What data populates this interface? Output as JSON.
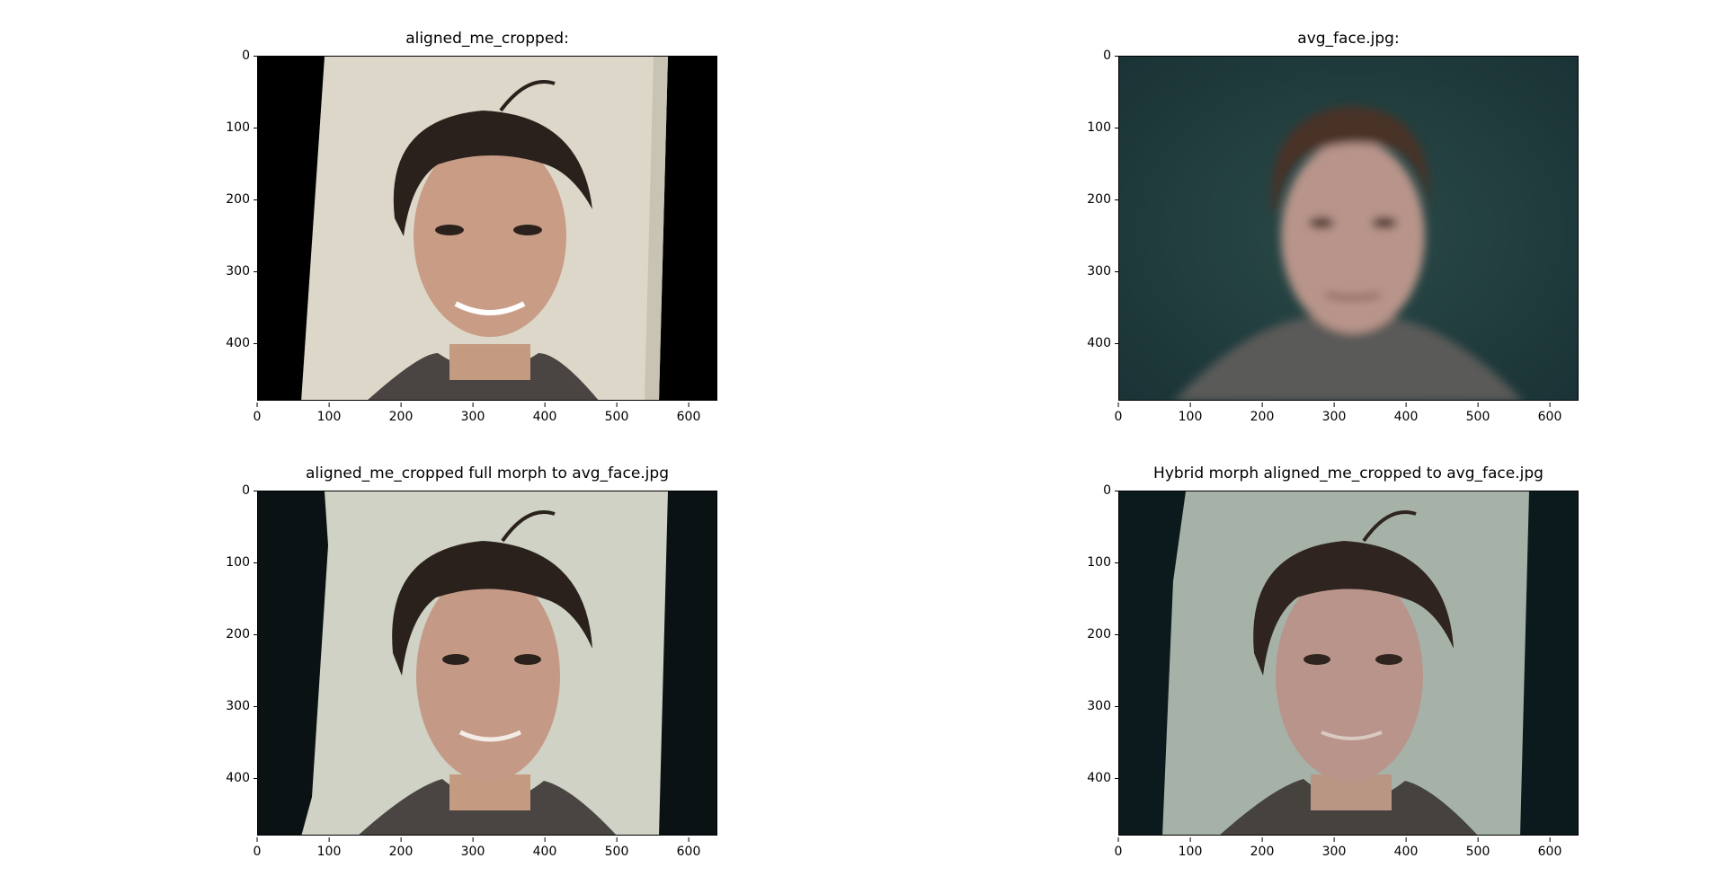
{
  "panels": [
    {
      "title": "aligned_me_cropped:"
    },
    {
      "title": "avg_face.jpg:"
    },
    {
      "title": "aligned_me_cropped full morph to avg_face.jpg"
    },
    {
      "title": "Hybrid morph aligned_me_cropped to avg_face.jpg"
    }
  ],
  "axes": {
    "y_ticks": [
      "0",
      "100",
      "200",
      "300",
      "400"
    ],
    "x_ticks": [
      "0",
      "100",
      "200",
      "300",
      "400",
      "500",
      "600"
    ]
  },
  "colors": {
    "wall_warm": "#dcd7c8",
    "wall_cool": "#c7cfc6",
    "hair": "#2a211c",
    "skin_warm": "#c99c86",
    "skin_cool": "#b8948a",
    "avg_bg": "#1f3b3d",
    "dark_bg": "#0b1214"
  }
}
